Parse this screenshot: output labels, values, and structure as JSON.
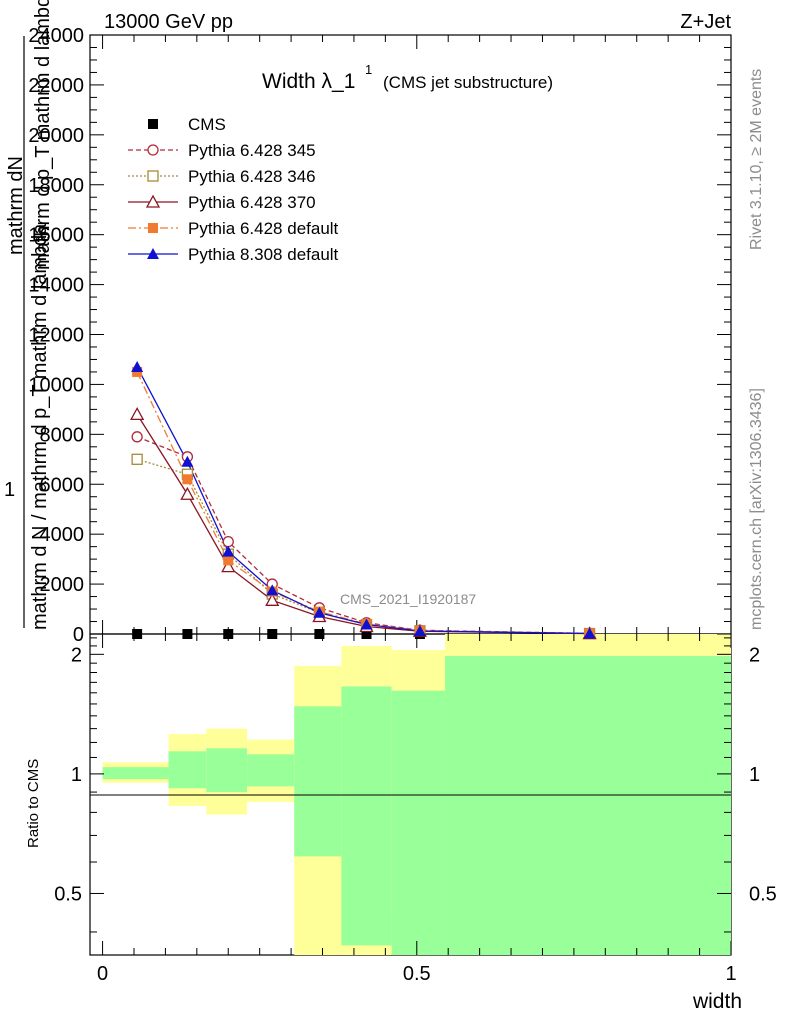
{
  "header": {
    "energy_label": "13000 GeV pp",
    "process_label": "Z+Jet",
    "title_main": "Width λ_1",
    "title_sup": "1",
    "title_sub": "(CMS jet substructure)"
  },
  "side_text": {
    "rivet": "Rivet 3.1.10, ≥ 2M events",
    "mcplots": "mcplots.cern.ch [arXiv:1306.3436]"
  },
  "watermark": "CMS_2021_I1920187",
  "ylabel_main": {
    "numer": "mathrm dN",
    "one": "1",
    "line1": "mathrm d N / mathrm d p_T mathrm d lambda",
    "line2": "mathrm d p_T mathrm d lambda"
  },
  "ylabel_ratio": "Ratio to CMS",
  "xlabel": "width",
  "colors": {
    "cms": "#000000",
    "p345": "#b22a3a",
    "p346": "#a68a38",
    "p370": "#8b1420",
    "p6def": "#f07b30",
    "p8def": "#1010d0",
    "band_outer": "#ffff99",
    "band_inner": "#99ff99"
  },
  "chart_data": {
    "type": "line",
    "x_range": [
      -0.02,
      1.0
    ],
    "ylim": [
      0,
      24000
    ],
    "ratio_ylim": [
      0.35,
      2.25
    ],
    "x_ticks": [
      "0",
      "0.5",
      "1"
    ],
    "y_ticks": [
      "0",
      "2000",
      "4000",
      "6000",
      "8000",
      "10000",
      "12000",
      "14000",
      "16000",
      "18000",
      "20000",
      "22000",
      "24000"
    ],
    "ratio_ticks": [
      "0.5",
      "1",
      "2"
    ],
    "x": [
      0.055,
      0.135,
      0.2,
      0.27,
      0.345,
      0.42,
      0.505,
      0.775
    ],
    "cms": [
      0,
      0,
      0,
      0,
      0,
      0,
      0,
      0
    ],
    "series": [
      {
        "name": "CMS",
        "key": "cms",
        "marker": "filled-square",
        "values": [
          0,
          0,
          0,
          0,
          0,
          0,
          0,
          0
        ]
      },
      {
        "name": "Pythia 6.428 345",
        "key": "p345",
        "marker": "open-circle",
        "dash": "5,3",
        "values": [
          7900,
          7100,
          3700,
          2000,
          1050,
          450,
          150,
          25
        ]
      },
      {
        "name": "Pythia 6.428 346",
        "key": "p346",
        "marker": "open-square",
        "dash": "2,2",
        "values": [
          7000,
          6400,
          3200,
          1600,
          850,
          380,
          130,
          20
        ]
      },
      {
        "name": "Pythia 6.428 370",
        "key": "p370",
        "marker": "open-triangle",
        "dash": "",
        "values": [
          8800,
          5600,
          2700,
          1350,
          700,
          300,
          110,
          18
        ]
      },
      {
        "name": "Pythia 6.428 default",
        "key": "p6def",
        "marker": "filled-square",
        "dash": "8,3,2,3",
        "values": [
          10500,
          6200,
          2950,
          1700,
          900,
          400,
          140,
          22
        ]
      },
      {
        "name": "Pythia 8.308 default",
        "key": "p8def",
        "marker": "filled-triangle",
        "dash": "",
        "values": [
          10700,
          6900,
          3300,
          1750,
          850,
          380,
          120,
          20
        ]
      }
    ],
    "ratio_bands": [
      {
        "x0": 0.0,
        "x1": 0.105,
        "inner_lo": 0.97,
        "inner_hi": 1.04,
        "outer_lo": 0.95,
        "outer_hi": 1.07
      },
      {
        "x0": 0.105,
        "x1": 0.165,
        "inner_lo": 0.92,
        "inner_hi": 1.14,
        "outer_lo": 0.83,
        "outer_hi": 1.26
      },
      {
        "x0": 0.165,
        "x1": 0.23,
        "inner_lo": 0.9,
        "inner_hi": 1.16,
        "outer_lo": 0.79,
        "outer_hi": 1.3
      },
      {
        "x0": 0.23,
        "x1": 0.305,
        "inner_lo": 0.93,
        "inner_hi": 1.12,
        "outer_lo": 0.85,
        "outer_hi": 1.22
      },
      {
        "x0": 0.305,
        "x1": 0.38,
        "inner_lo": 0.62,
        "inner_hi": 1.48,
        "outer_lo": 0.3,
        "outer_hi": 1.87
      },
      {
        "x0": 0.38,
        "x1": 0.46,
        "inner_lo": 0.37,
        "inner_hi": 1.66,
        "outer_lo": 0.3,
        "outer_hi": 2.1
      },
      {
        "x0": 0.46,
        "x1": 0.545,
        "inner_lo": 0.3,
        "inner_hi": 1.62,
        "outer_lo": 0.44,
        "outer_hi": 2.05
      },
      {
        "x0": 0.545,
        "x1": 1.0,
        "inner_lo": 0.3,
        "inner_hi": 1.98,
        "outer_lo": 0.3,
        "outer_hi": 2.4
      }
    ]
  }
}
